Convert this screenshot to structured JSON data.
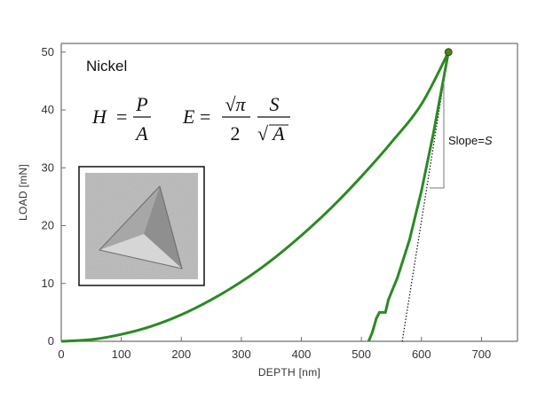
{
  "chart_data": {
    "type": "line",
    "xlabel": "DEPTH [nm]",
    "ylabel": "LOAD [mN]",
    "xlim": [
      0,
      760
    ],
    "ylim": [
      0,
      51.5
    ],
    "xticks": [
      0,
      100,
      200,
      300,
      400,
      500,
      600,
      700
    ],
    "yticks": [
      0,
      10,
      20,
      30,
      40,
      50
    ],
    "grid": false,
    "legend": "none",
    "material_label": "Nickel",
    "equations": {
      "hardness": {
        "lhs": "H",
        "eq": "=",
        "num": "P",
        "den": "A"
      },
      "modulus": {
        "lhs": "E",
        "eq": "=",
        "num1": "√π",
        "den1": "2",
        "num2": "S",
        "den2_root": "√",
        "den2_var": "A"
      }
    },
    "annotation": {
      "text_main": "Slope=",
      "text_var": "S"
    },
    "colors": {
      "curve": "#2a8a23",
      "axis": "#6f6f6f",
      "tangent": "#111111",
      "inset_bg": "#b9b9b9"
    },
    "series": [
      {
        "role": "loading",
        "points": [
          [
            0,
            0
          ],
          [
            50,
            0.3
          ],
          [
            100,
            1.2
          ],
          [
            150,
            2.6
          ],
          [
            200,
            4.6
          ],
          [
            250,
            7.2
          ],
          [
            300,
            10.3
          ],
          [
            350,
            14.0
          ],
          [
            400,
            18.3
          ],
          [
            450,
            23.1
          ],
          [
            500,
            28.5
          ],
          [
            550,
            34.4
          ],
          [
            600,
            41.0
          ],
          [
            645,
            50.0
          ]
        ]
      },
      {
        "role": "unloading",
        "points": [
          [
            645,
            50.0
          ],
          [
            620,
            36
          ],
          [
            600,
            26
          ],
          [
            580,
            17.5
          ],
          [
            560,
            11
          ],
          [
            545,
            7.2
          ],
          [
            540,
            5.0
          ],
          [
            530,
            5.0
          ],
          [
            525,
            4.0
          ],
          [
            518,
            1.5
          ],
          [
            512,
            0
          ]
        ]
      },
      {
        "role": "tangent",
        "points": [
          [
            645,
            50.0
          ],
          [
            568,
            0
          ]
        ]
      }
    ],
    "peak_point": [
      645,
      50.0
    ]
  }
}
